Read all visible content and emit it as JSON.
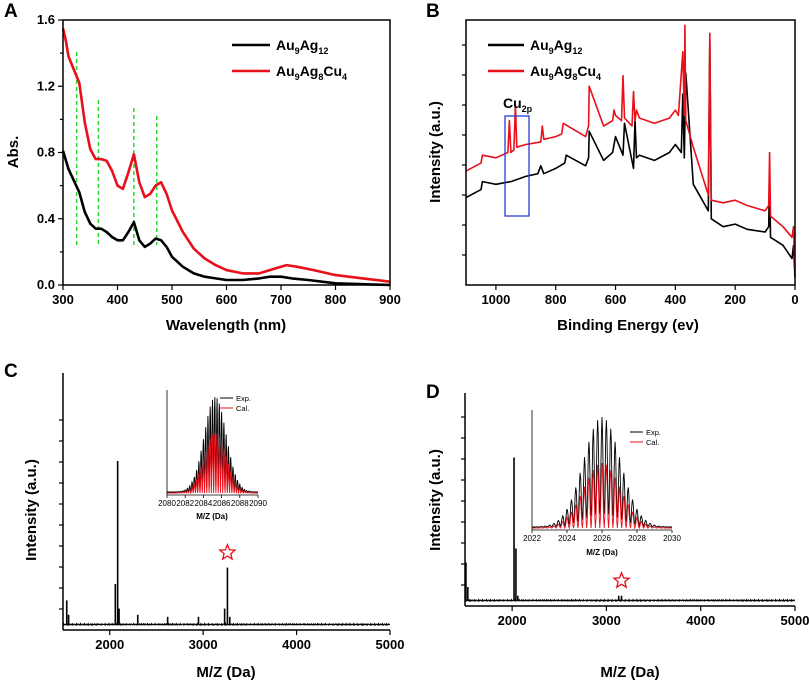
{
  "panels": {
    "a": "A",
    "b": "B",
    "c": "C",
    "d": "D"
  },
  "colors": {
    "black": "#000000",
    "red": "#e8101b",
    "guide": "#22dd22",
    "box": "#2a3ccf",
    "star": "#e8101b"
  },
  "chart_data": [
    {
      "id": "A",
      "type": "line",
      "xlabel": "Wavelength (nm)",
      "ylabel": "Abs.",
      "xlim": [
        300,
        900
      ],
      "ylim": [
        0,
        1.6
      ],
      "xticks": [
        300,
        400,
        500,
        600,
        700,
        800,
        900
      ],
      "yticks": [
        0.0,
        0.4,
        0.8,
        1.2,
        1.6
      ],
      "ytick_labels": [
        "0.0",
        "0.4",
        "0.8",
        "1.2",
        "1.6"
      ],
      "legend": [
        {
          "base": "Au",
          "sub1": "9",
          "mid": "Ag",
          "sub2": "12",
          "tail": "",
          "sub3": "",
          "color": "#000000"
        },
        {
          "base": "Au",
          "sub1": "9",
          "mid": "Ag",
          "sub2": "8",
          "tail": "Cu",
          "sub3": "4",
          "color": "#e8101b"
        }
      ],
      "guides": [
        325,
        365,
        430,
        472
      ],
      "series": [
        {
          "name": "Au9Ag12",
          "color": "#000000",
          "x": [
            300,
            310,
            320,
            330,
            340,
            350,
            360,
            370,
            380,
            390,
            400,
            410,
            420,
            430,
            440,
            450,
            460,
            470,
            480,
            490,
            500,
            520,
            540,
            560,
            580,
            600,
            630,
            660,
            680,
            700,
            720,
            750,
            800,
            850,
            900
          ],
          "y": [
            0.81,
            0.7,
            0.63,
            0.56,
            0.44,
            0.37,
            0.34,
            0.34,
            0.32,
            0.29,
            0.27,
            0.27,
            0.32,
            0.38,
            0.27,
            0.23,
            0.25,
            0.28,
            0.27,
            0.23,
            0.17,
            0.11,
            0.07,
            0.05,
            0.04,
            0.03,
            0.03,
            0.04,
            0.05,
            0.05,
            0.04,
            0.03,
            0.01,
            0.005,
            0.0
          ]
        },
        {
          "name": "Au9Ag8Cu4",
          "color": "#e8101b",
          "x": [
            300,
            305,
            310,
            320,
            330,
            340,
            350,
            360,
            370,
            380,
            390,
            400,
            410,
            420,
            430,
            440,
            450,
            460,
            470,
            480,
            490,
            500,
            520,
            540,
            560,
            580,
            600,
            630,
            660,
            690,
            710,
            730,
            760,
            800,
            850,
            900
          ],
          "y": [
            1.55,
            1.48,
            1.38,
            1.3,
            1.22,
            0.98,
            0.82,
            0.76,
            0.76,
            0.75,
            0.69,
            0.6,
            0.58,
            0.68,
            0.79,
            0.62,
            0.53,
            0.55,
            0.6,
            0.62,
            0.55,
            0.45,
            0.32,
            0.22,
            0.16,
            0.12,
            0.09,
            0.07,
            0.07,
            0.1,
            0.12,
            0.11,
            0.09,
            0.06,
            0.04,
            0.02
          ]
        }
      ]
    },
    {
      "id": "B",
      "type": "line",
      "xlabel": "Binding Energy (ev)",
      "ylabel": "Intensity (a.u.)",
      "xlim": [
        1100,
        0
      ],
      "xticks": [
        1000,
        800,
        600,
        400,
        200,
        0
      ],
      "legend": [
        {
          "base": "Au",
          "sub1": "9",
          "mid": "Ag",
          "sub2": "12",
          "tail": "",
          "sub3": "",
          "color": "#000000"
        },
        {
          "base": "Au",
          "sub1": "9",
          "mid": "Ag",
          "sub2": "8",
          "tail": "Cu",
          "sub3": "4",
          "color": "#e8101b"
        }
      ],
      "annotation": {
        "text": "Cu",
        "sub": "2p",
        "x_range": [
          980,
          905
        ]
      },
      "series": [
        {
          "name": "Au9Ag12",
          "color": "#000000",
          "x": [
            1100,
            1050,
            1045,
            1000,
            950,
            900,
            860,
            850,
            840,
            800,
            770,
            765,
            700,
            690,
            688,
            640,
            610,
            600,
            575,
            570,
            540,
            535,
            530,
            520,
            470,
            420,
            400,
            380,
            375,
            370,
            365,
            340,
            290,
            285,
            280,
            240,
            200,
            160,
            100,
            88,
            85,
            82,
            40,
            10,
            5,
            0
          ],
          "y": [
            0.33,
            0.36,
            0.39,
            0.38,
            0.39,
            0.41,
            0.42,
            0.45,
            0.42,
            0.44,
            0.46,
            0.49,
            0.45,
            0.48,
            0.58,
            0.47,
            0.5,
            0.56,
            0.49,
            0.61,
            0.44,
            0.62,
            0.48,
            0.49,
            0.47,
            0.5,
            0.53,
            0.5,
            0.72,
            0.48,
            0.8,
            0.38,
            0.28,
            0.92,
            0.25,
            0.22,
            0.23,
            0.21,
            0.2,
            0.22,
            0.42,
            0.18,
            0.15,
            0.1,
            0.15,
            0.03
          ]
        },
        {
          "name": "Au9Ag8Cu4",
          "color": "#e8101b",
          "x": [
            1100,
            1050,
            1045,
            1000,
            960,
            955,
            950,
            940,
            935,
            930,
            900,
            850,
            845,
            840,
            800,
            780,
            775,
            700,
            690,
            688,
            640,
            610,
            605,
            600,
            580,
            575,
            570,
            545,
            540,
            535,
            530,
            520,
            470,
            420,
            400,
            390,
            375,
            370,
            368,
            365,
            340,
            290,
            285,
            280,
            240,
            200,
            160,
            100,
            88,
            85,
            82,
            40,
            10,
            5,
            0
          ],
          "y": [
            0.43,
            0.46,
            0.49,
            0.48,
            0.5,
            0.62,
            0.5,
            0.51,
            0.68,
            0.52,
            0.53,
            0.54,
            0.6,
            0.55,
            0.56,
            0.57,
            0.61,
            0.56,
            0.6,
            0.75,
            0.6,
            0.62,
            0.66,
            0.64,
            0.62,
            0.79,
            0.63,
            0.6,
            0.73,
            0.62,
            0.66,
            0.63,
            0.61,
            0.63,
            0.66,
            0.64,
            0.88,
            0.64,
            0.98,
            0.62,
            0.52,
            0.34,
            0.95,
            0.32,
            0.31,
            0.32,
            0.3,
            0.28,
            0.3,
            0.5,
            0.26,
            0.22,
            0.18,
            0.22,
            0.06
          ]
        }
      ]
    },
    {
      "id": "C",
      "type": "line",
      "xlabel": "M/Z (Da)",
      "ylabel": "Intensity (a.u.)",
      "xlim": [
        1500,
        5000
      ],
      "xticks": [
        2000,
        3000,
        4000,
        5000
      ],
      "peaks": [
        [
          1540,
          0.12
        ],
        [
          1560,
          0.05
        ],
        [
          2060,
          0.2
        ],
        [
          2085,
          0.8
        ],
        [
          2100,
          0.08
        ],
        [
          2300,
          0.05
        ],
        [
          2620,
          0.04
        ],
        [
          2950,
          0.04
        ],
        [
          3230,
          0.08
        ],
        [
          3260,
          0.28
        ],
        [
          3285,
          0.04
        ]
      ],
      "star_at": 3260,
      "inset": {
        "xlabel": "M/Z (Da)",
        "xlim": [
          2080,
          2090
        ],
        "xticks": [
          2080,
          2082,
          2084,
          2086,
          2088,
          2090
        ],
        "center": 2085.3,
        "sigma": 1.2,
        "spacing": 0.25,
        "legend": [
          "Exp.",
          "Cal."
        ]
      }
    },
    {
      "id": "D",
      "type": "line",
      "xlabel": "M/Z (Da)",
      "ylabel": "Intensity (a.u.)",
      "xlim": [
        1500,
        5000
      ],
      "xticks": [
        2000,
        3000,
        4000,
        5000
      ],
      "peaks": [
        [
          1510,
          0.22
        ],
        [
          1530,
          0.08
        ],
        [
          2020,
          0.82
        ],
        [
          2040,
          0.3
        ],
        [
          2060,
          0.03
        ],
        [
          3130,
          0.03
        ],
        [
          3160,
          0.03
        ]
      ],
      "star_at": 3160,
      "inset": {
        "xlabel": "M/Z (Da)",
        "xlim": [
          2022,
          2030
        ],
        "xticks": [
          2022,
          2024,
          2026,
          2028,
          2030
        ],
        "center": 2026.0,
        "sigma": 1.05,
        "spacing": 0.25,
        "legend": [
          "Exp.",
          "Cal."
        ]
      }
    }
  ]
}
